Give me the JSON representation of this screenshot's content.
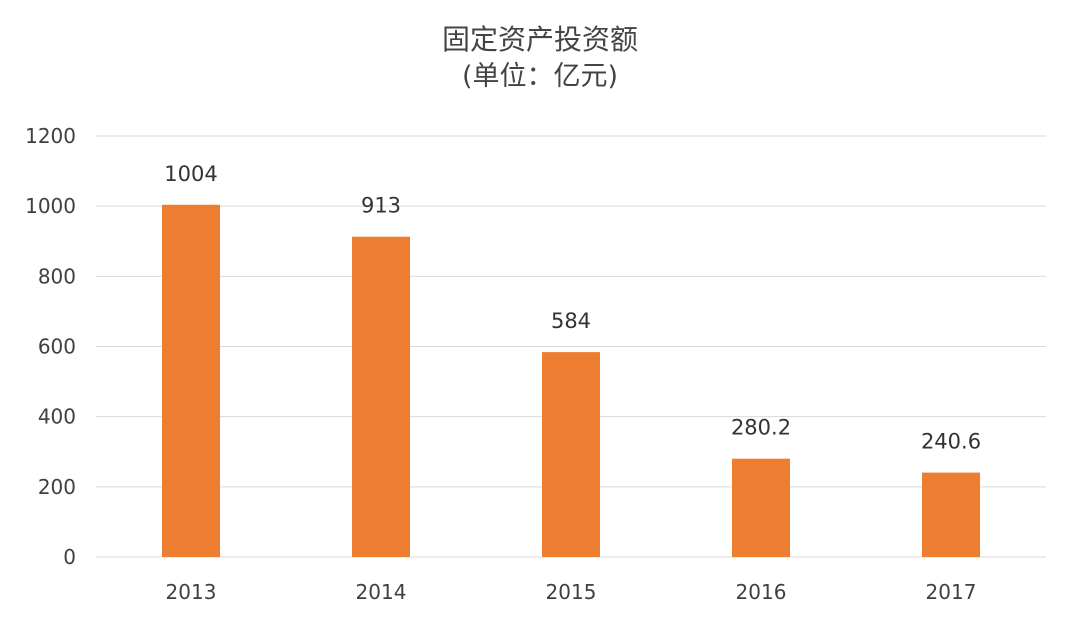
{
  "chart_data": {
    "type": "bar",
    "title": "固定资产投资额",
    "subtitle": "(单位：亿元)",
    "categories": [
      "2013",
      "2014",
      "2015",
      "2016",
      "2017"
    ],
    "values": [
      1004,
      913,
      584,
      280.2,
      240.6
    ],
    "data_labels": [
      "1004",
      "913",
      "584",
      "280.2",
      "240.6"
    ],
    "ylim": [
      0,
      1200
    ],
    "yticks": [
      0,
      200,
      400,
      600,
      800,
      1000,
      1200
    ],
    "grid": true,
    "legend": "none",
    "bar_color": "#ED7D31",
    "grid_color": "#D9D9D9"
  }
}
